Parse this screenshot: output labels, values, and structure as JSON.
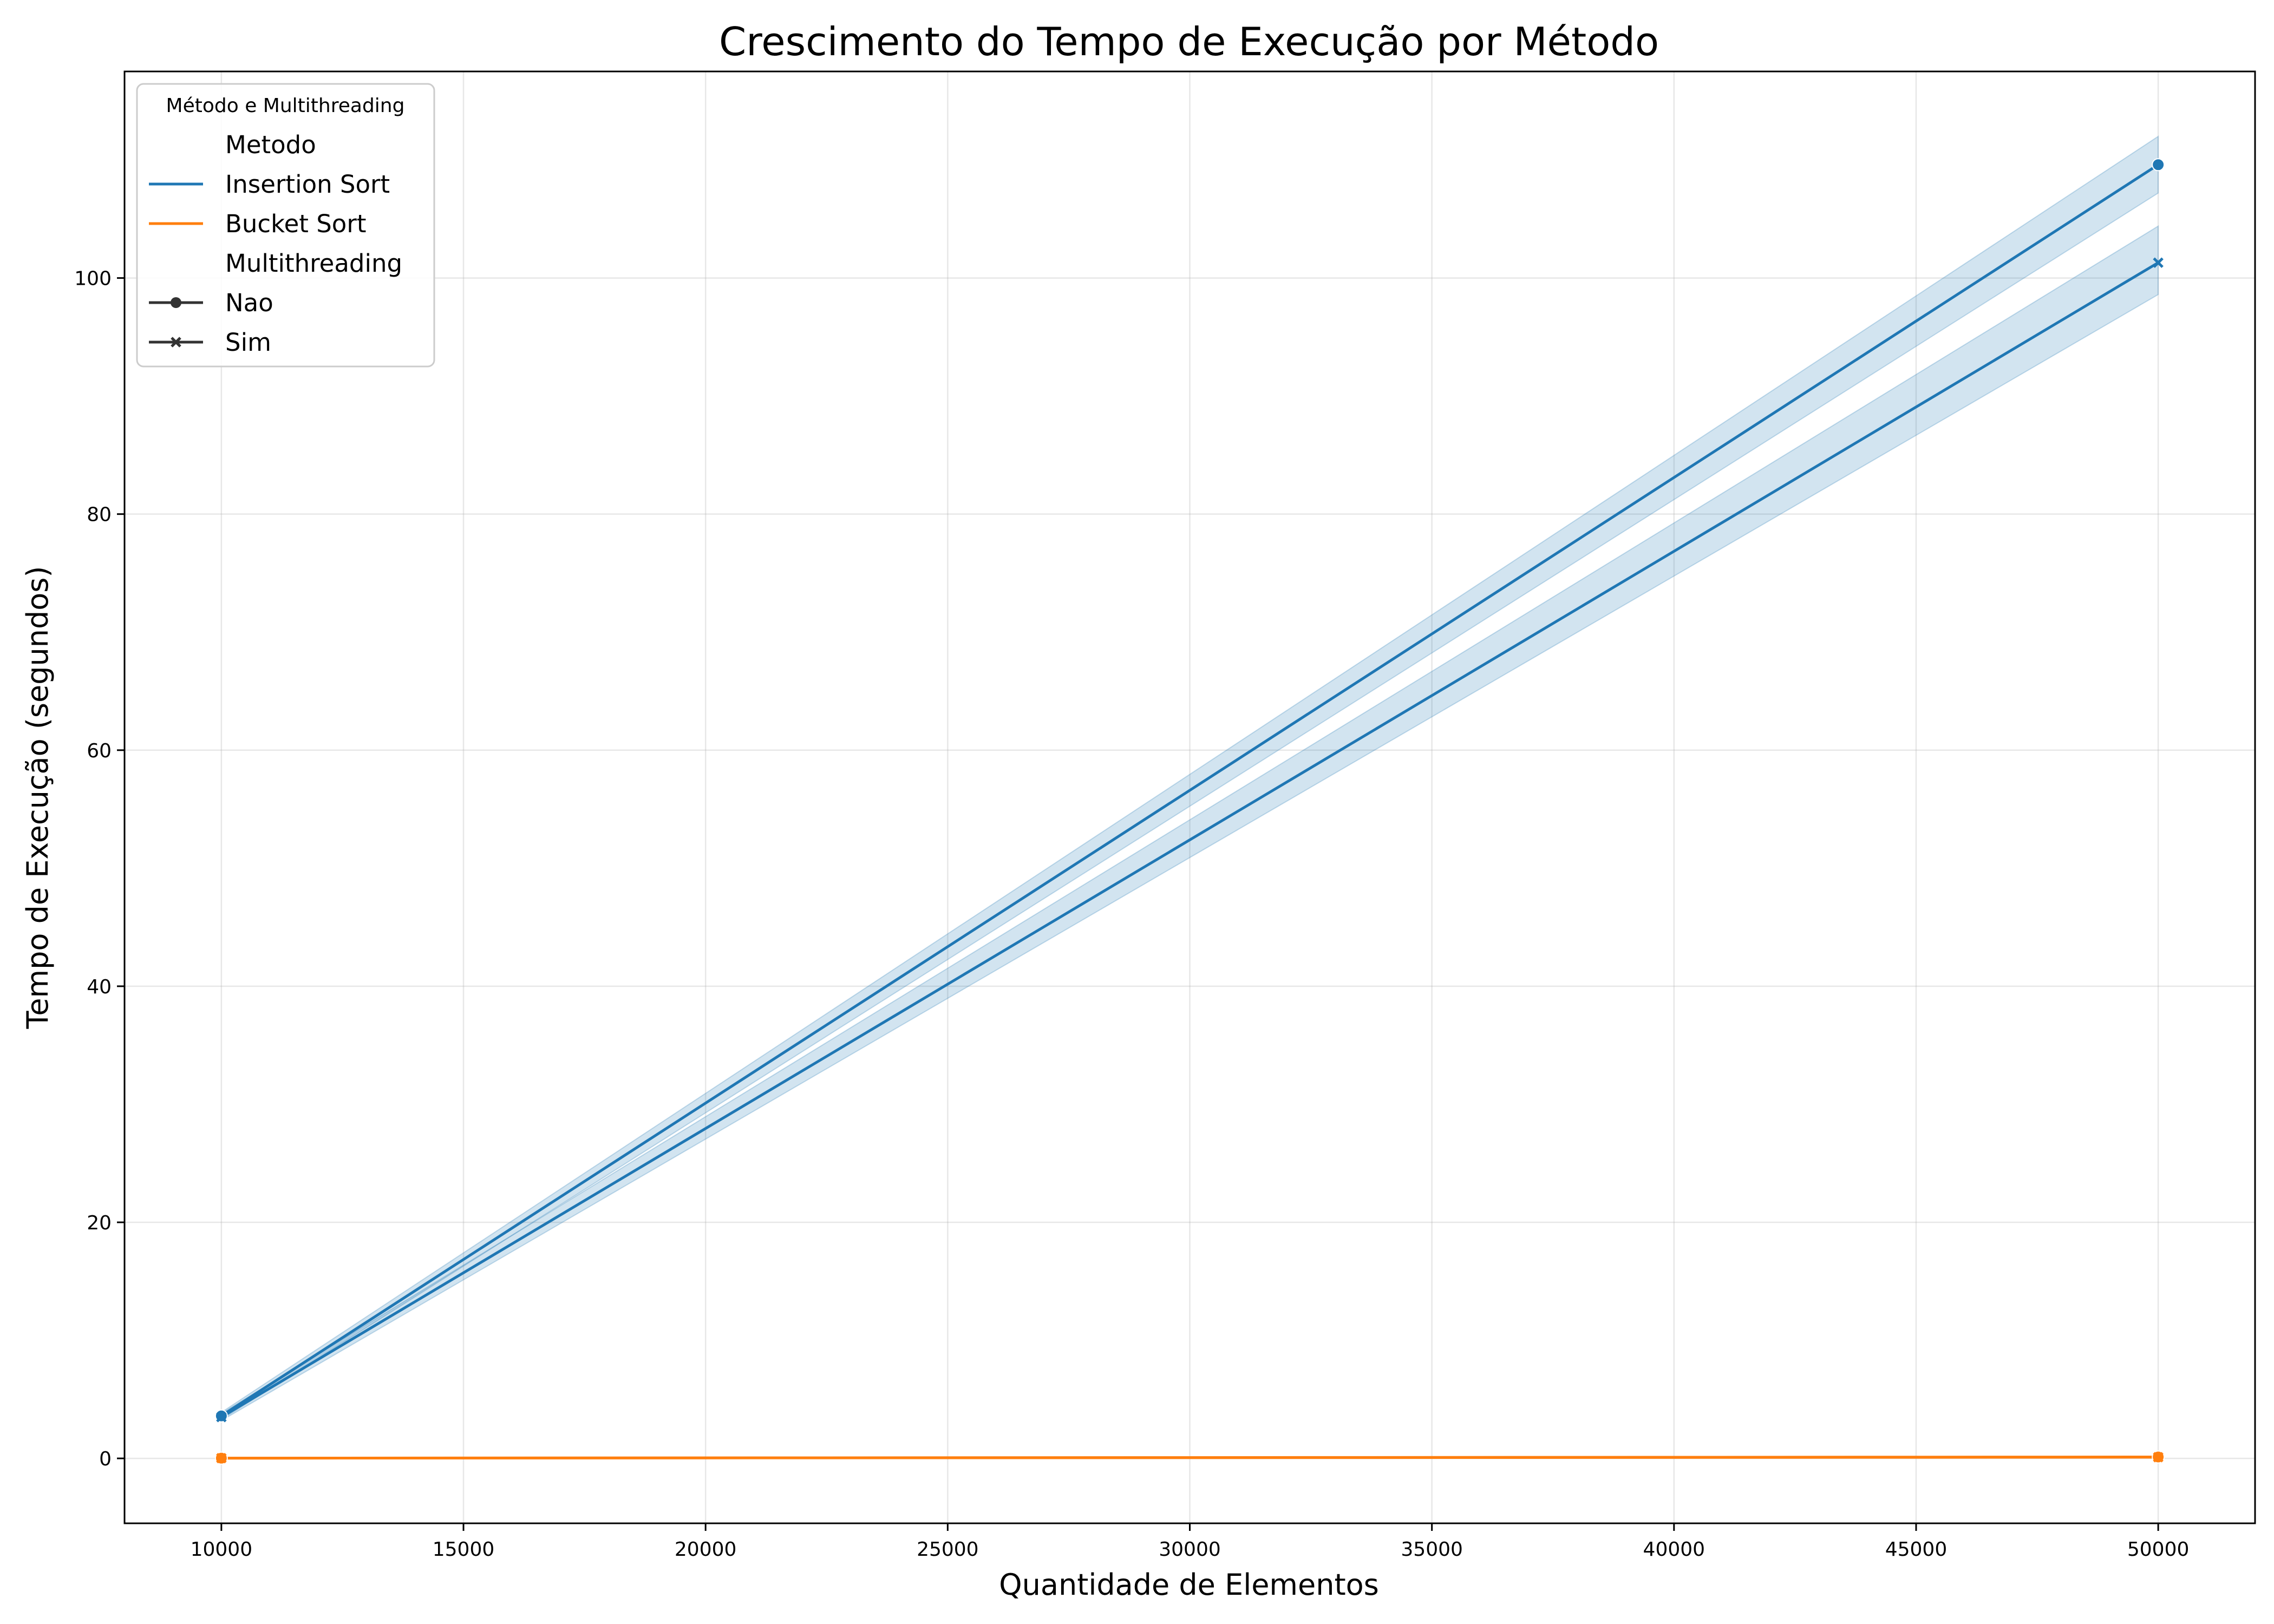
{
  "chart_data": {
    "type": "line",
    "title": "Crescimento do Tempo de Execução por Método",
    "xlabel": "Quantidade de Elementos",
    "ylabel": "Tempo de Execução (segundos)",
    "xlim": [
      8000,
      52000
    ],
    "ylim": [
      -5.5,
      117.5
    ],
    "xticks": [
      10000,
      15000,
      20000,
      25000,
      30000,
      35000,
      40000,
      45000,
      50000
    ],
    "yticks": [
      0,
      20,
      40,
      60,
      80,
      100
    ],
    "grid": true,
    "legend": {
      "placement": "top-left",
      "title": "Método e Multithreading",
      "hue_header": "Metodo",
      "hue_entries": [
        {
          "label": "Insertion Sort",
          "color": "#1f77b4"
        },
        {
          "label": "Bucket Sort",
          "color": "#ff7f0e"
        }
      ],
      "style_header": "Multithreading",
      "style_entries": [
        {
          "label": "Nao",
          "marker": "circle"
        },
        {
          "label": "Sim",
          "marker": "x"
        }
      ]
    },
    "series": [
      {
        "method": "Insertion Sort",
        "multithreading": "Nao",
        "color": "#1f77b4",
        "marker": "circle",
        "x": [
          10000,
          50000
        ],
        "y": [
          3.6,
          109.6
        ],
        "ci_low": [
          3.3,
          107.2
        ],
        "ci_high": [
          3.9,
          112.0
        ]
      },
      {
        "method": "Insertion Sort",
        "multithreading": "Sim",
        "color": "#1f77b4",
        "marker": "x",
        "x": [
          10000,
          50000
        ],
        "y": [
          3.5,
          101.3
        ],
        "ci_low": [
          3.2,
          98.6
        ],
        "ci_high": [
          3.8,
          104.4
        ]
      },
      {
        "method": "Bucket Sort",
        "multithreading": "Nao",
        "color": "#ff7f0e",
        "marker": "circle",
        "x": [
          10000,
          50000
        ],
        "y": [
          0.02,
          0.12
        ],
        "ci_low": [
          0.01,
          0.1
        ],
        "ci_high": [
          0.03,
          0.14
        ]
      },
      {
        "method": "Bucket Sort",
        "multithreading": "Sim",
        "color": "#ff7f0e",
        "marker": "x",
        "x": [
          10000,
          50000
        ],
        "y": [
          0.02,
          0.1
        ],
        "ci_low": [
          0.01,
          0.08
        ],
        "ci_high": [
          0.03,
          0.12
        ]
      }
    ]
  }
}
